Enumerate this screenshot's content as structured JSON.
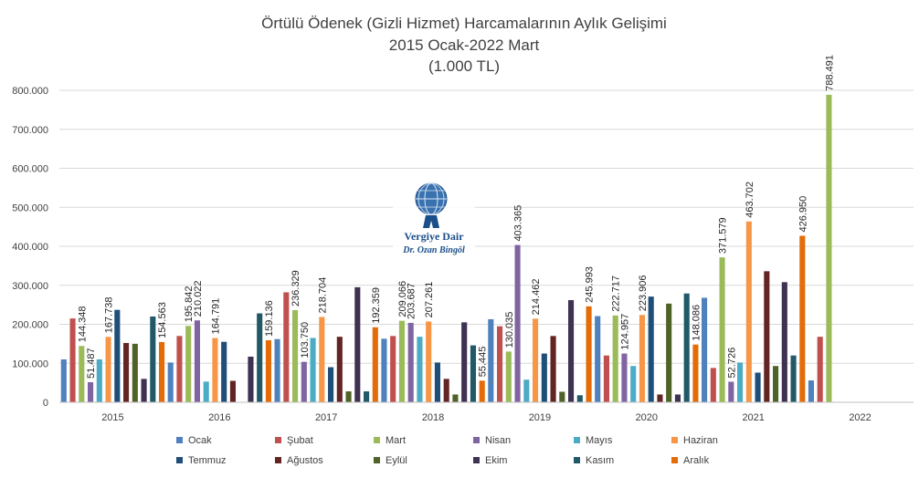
{
  "chart_data": {
    "type": "bar",
    "title": "Örtülü Ödenek (Gizli Hizmet) Harcamalarının Aylık Gelişimi",
    "subtitle": "2015 Ocak-2022 Mart",
    "unit": "(1.000 TL)",
    "categories": [
      "2015",
      "2016",
      "2017",
      "2018",
      "2019",
      "2020",
      "2021",
      "2022"
    ],
    "ylim": [
      0,
      800000
    ],
    "yticks": [
      "0",
      "100.000",
      "200.000",
      "300.000",
      "400.000",
      "500.000",
      "600.000",
      "700.000",
      "800.000"
    ],
    "grid": true,
    "legend_position": "bottom",
    "series": [
      {
        "name": "Ocak",
        "color": "#4f81bd",
        "values": [
          110000,
          102000,
          162000,
          163000,
          213000,
          221000,
          268000,
          56000
        ]
      },
      {
        "name": "Şubat",
        "color": "#c0504d",
        "values": [
          215000,
          170000,
          282000,
          170000,
          195000,
          120000,
          88000,
          168000
        ]
      },
      {
        "name": "Mart",
        "color": "#9bbb59",
        "values": [
          144348,
          195842,
          236329,
          209066,
          130035,
          222717,
          371579,
          788491
        ]
      },
      {
        "name": "Nisan",
        "color": "#8064a2",
        "values": [
          51487,
          210022,
          103750,
          203687,
          403365,
          124957,
          52726,
          null
        ]
      },
      {
        "name": "Mayıs",
        "color": "#4bacc6",
        "values": [
          110000,
          53000,
          165000,
          168000,
          58000,
          93000,
          102000,
          null
        ]
      },
      {
        "name": "Haziran",
        "color": "#f79646",
        "values": [
          167738,
          164791,
          218704,
          207261,
          214462,
          223906,
          463702,
          null
        ]
      },
      {
        "name": "Temmuz",
        "color": "#1f4e79",
        "values": [
          237000,
          155000,
          90000,
          102000,
          125000,
          271000,
          76000,
          null
        ]
      },
      {
        "name": "Ağustos",
        "color": "#632523",
        "values": [
          152000,
          55000,
          168000,
          60000,
          170000,
          20000,
          336000,
          null
        ]
      },
      {
        "name": "Eylül",
        "color": "#4f6228",
        "values": [
          150000,
          null,
          28000,
          20000,
          27000,
          253000,
          93000,
          null
        ]
      },
      {
        "name": "Ekim",
        "color": "#3f3151",
        "values": [
          60000,
          117000,
          295000,
          205000,
          262000,
          20000,
          308000,
          null
        ]
      },
      {
        "name": "Kasım",
        "color": "#215968",
        "values": [
          220000,
          228000,
          28000,
          146000,
          18000,
          279000,
          120000,
          null
        ]
      },
      {
        "name": "Aralık",
        "color": "#e36c09",
        "values": [
          154563,
          159136,
          192359,
          55445,
          245993,
          148086,
          426950,
          null
        ]
      }
    ],
    "data_labels": [
      {
        "series": "Mart",
        "category": "2015",
        "text": "144.348"
      },
      {
        "series": "Nisan",
        "category": "2015",
        "text": "51.487"
      },
      {
        "series": "Haziran",
        "category": "2015",
        "text": "167.738"
      },
      {
        "series": "Aralık",
        "category": "2015",
        "text": "154.563"
      },
      {
        "series": "Mart",
        "category": "2016",
        "text": "195.842"
      },
      {
        "series": "Nisan",
        "category": "2016",
        "text": "210.022"
      },
      {
        "series": "Haziran",
        "category": "2016",
        "text": "164.791"
      },
      {
        "series": "Aralık",
        "category": "2016",
        "text": "159.136"
      },
      {
        "series": "Mart",
        "category": "2017",
        "text": "236.329"
      },
      {
        "series": "Nisan",
        "category": "2017",
        "text": "103.750"
      },
      {
        "series": "Haziran",
        "category": "2017",
        "text": "218.704"
      },
      {
        "series": "Aralık",
        "category": "2017",
        "text": "192.359"
      },
      {
        "series": "Mart",
        "category": "2018",
        "text": "209.066"
      },
      {
        "series": "Nisan",
        "category": "2018",
        "text": "203.687"
      },
      {
        "series": "Haziran",
        "category": "2018",
        "text": "207.261"
      },
      {
        "series": "Aralık",
        "category": "2018",
        "text": "55.445"
      },
      {
        "series": "Mart",
        "category": "2019",
        "text": "130.035"
      },
      {
        "series": "Nisan",
        "category": "2019",
        "text": "403.365"
      },
      {
        "series": "Haziran",
        "category": "2019",
        "text": "214.462"
      },
      {
        "series": "Aralık",
        "category": "2019",
        "text": "245.993"
      },
      {
        "series": "Mart",
        "category": "2020",
        "text": "222.717"
      },
      {
        "series": "Nisan",
        "category": "2020",
        "text": "124.957"
      },
      {
        "series": "Haziran",
        "category": "2020",
        "text": "223.906"
      },
      {
        "series": "Aralık",
        "category": "2020",
        "text": "148.086"
      },
      {
        "series": "Mart",
        "category": "2021",
        "text": "371.579"
      },
      {
        "series": "Nisan",
        "category": "2021",
        "text": "52.726"
      },
      {
        "series": "Haziran",
        "category": "2021",
        "text": "463.702"
      },
      {
        "series": "Aralık",
        "category": "2021",
        "text": "426.950"
      },
      {
        "series": "Mart",
        "category": "2022",
        "text": "788.491"
      }
    ]
  },
  "watermark": {
    "line1": "Vergiye Dair",
    "line2": "Dr. Ozan Bingöl",
    "icon": "globe-atlas-icon"
  }
}
